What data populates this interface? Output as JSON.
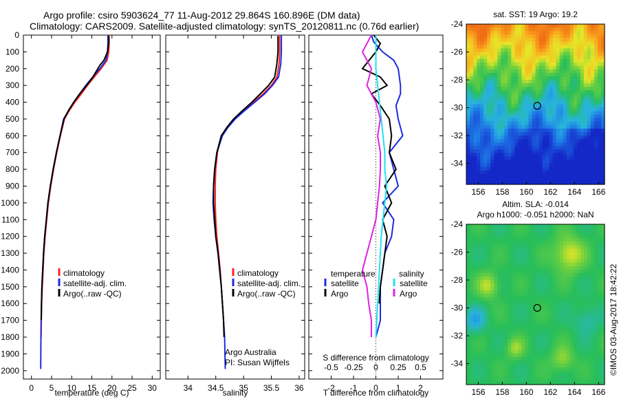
{
  "header": {
    "title_line1": "Argo profile: csiro 5903624_77 11-Aug-2012 29.864S 160.896E (DM data)",
    "title_line2": "Climatology: CARS2009. Satellite-adjusted climatology: synTS_20120811.nc (0.76d earlier)"
  },
  "stamp": "©IMOS 03-Aug-2017 18:42:22",
  "colors": {
    "red": "#ff2020",
    "blue": "#1a2ae0",
    "black": "#000000",
    "cyan": "#20e0f0",
    "magenta": "#e020e0"
  },
  "chart_data": [
    {
      "type": "line",
      "panel": "temperature",
      "xlabel": "temperature (deg C)",
      "ylabel": "",
      "xlim": [
        -2,
        32
      ],
      "ylim": [
        2050,
        0
      ],
      "xticks": [
        0,
        5,
        10,
        15,
        20,
        25,
        30
      ],
      "yticks": [
        0,
        100,
        200,
        300,
        400,
        500,
        600,
        700,
        800,
        900,
        1000,
        1100,
        1200,
        1300,
        1400,
        1500,
        1600,
        1700,
        1800,
        1900,
        2000
      ],
      "legend": [
        "climatology",
        "satellite-adj. clim.",
        "Argo(..raw -QC)"
      ],
      "legend_position": "lower-right",
      "series": [
        {
          "name": "climatology",
          "color": "red",
          "x": [
            19.3,
            19.3,
            19.2,
            18.8,
            17.3,
            15.6,
            13.9,
            12.4,
            10.8,
            9.4,
            8.2,
            7.2,
            6.3,
            5.5,
            4.8,
            4.2,
            3.8,
            3.4,
            3.1,
            2.9,
            2.7,
            2.55,
            2.45,
            2.4
          ],
          "y": [
            0,
            50,
            100,
            150,
            200,
            250,
            300,
            350,
            400,
            450,
            500,
            600,
            700,
            800,
            900,
            1000,
            1100,
            1200,
            1300,
            1400,
            1500,
            1600,
            1700,
            1800
          ]
        },
        {
          "name": "satellite-adj. clim.",
          "color": "blue",
          "x": [
            19.0,
            19.0,
            18.9,
            18.5,
            17.0,
            15.2,
            13.5,
            12.0,
            10.5,
            9.2,
            8.0,
            7.1,
            6.2,
            5.4,
            4.7,
            4.1,
            3.7,
            3.3,
            3.0,
            2.8,
            2.6,
            2.5,
            2.4,
            2.35,
            2.3
          ],
          "y": [
            0,
            50,
            100,
            150,
            200,
            250,
            300,
            350,
            400,
            450,
            500,
            600,
            700,
            800,
            900,
            1000,
            1100,
            1200,
            1300,
            1400,
            1500,
            1600,
            1700,
            1800,
            1990
          ]
        },
        {
          "name": "Argo(..raw -QC)",
          "color": "black",
          "x": [
            19.2,
            19.2,
            18.9,
            18.0,
            17.0,
            15.0,
            13.7,
            12.0,
            10.5,
            9.2,
            8.1,
            7.1,
            6.2,
            5.4,
            4.7,
            4.1,
            3.7,
            3.3,
            3.0,
            2.8,
            2.6,
            2.5,
            2.45
          ],
          "y": [
            5,
            50,
            100,
            150,
            180,
            260,
            300,
            350,
            400,
            450,
            500,
            600,
            700,
            800,
            900,
            1000,
            1100,
            1200,
            1300,
            1400,
            1500,
            1600,
            1700
          ]
        }
      ]
    },
    {
      "type": "line",
      "panel": "salinity",
      "xlabel": "salinity",
      "ylabel": "",
      "xlim": [
        33.6,
        36.1
      ],
      "ylim": [
        2050,
        0
      ],
      "xticks": [
        34,
        34.5,
        35,
        35.5,
        36
      ],
      "legend": [
        "climatology",
        "satellite-adj. clim.",
        "Argo(..raw -QC)"
      ],
      "legend_position": "lower-right",
      "annotation": [
        "Argo Australia",
        "PI: Susan Wijffels"
      ],
      "series": [
        {
          "name": "climatology",
          "color": "red",
          "x": [
            35.65,
            35.65,
            35.64,
            35.6,
            35.5,
            35.35,
            35.18,
            35.0,
            34.83,
            34.7,
            34.6,
            34.53,
            34.5,
            34.49,
            34.49,
            34.5,
            34.52,
            34.55,
            34.58,
            34.6,
            34.62,
            34.64,
            34.65
          ],
          "y": [
            0,
            100,
            170,
            250,
            300,
            350,
            400,
            450,
            500,
            550,
            600,
            700,
            800,
            900,
            1000,
            1100,
            1200,
            1300,
            1400,
            1500,
            1600,
            1700,
            1800
          ]
        },
        {
          "name": "satellite-adj. clim.",
          "color": "blue",
          "x": [
            35.68,
            35.68,
            35.67,
            35.63,
            35.52,
            35.38,
            35.2,
            35.02,
            34.85,
            34.72,
            34.62,
            34.52,
            34.48,
            34.46,
            34.45,
            34.47,
            34.5,
            34.54,
            34.57,
            34.6,
            34.62,
            34.64,
            34.66,
            34.67
          ],
          "y": [
            0,
            100,
            170,
            250,
            300,
            350,
            400,
            450,
            500,
            550,
            600,
            700,
            800,
            900,
            1000,
            1100,
            1200,
            1300,
            1400,
            1500,
            1600,
            1700,
            1800,
            1990
          ]
        },
        {
          "name": "Argo(..raw -QC)",
          "color": "black",
          "x": [
            35.62,
            35.62,
            35.6,
            35.56,
            35.45,
            35.3,
            35.15,
            34.98,
            34.82,
            34.7,
            34.6,
            34.52,
            34.48,
            34.46,
            34.46,
            34.48,
            34.5,
            34.54,
            34.57,
            34.6,
            34.62,
            34.64,
            34.65
          ],
          "y": [
            5,
            100,
            170,
            250,
            300,
            350,
            400,
            450,
            500,
            550,
            600,
            700,
            800,
            900,
            1000,
            1100,
            1200,
            1300,
            1400,
            1500,
            1600,
            1700,
            1800
          ]
        }
      ]
    },
    {
      "type": "line",
      "panel": "difference",
      "xlabel": "T difference from climatology",
      "xlabel_top": "S difference from climatology",
      "ylabel": "",
      "xlim": [
        -3,
        3
      ],
      "ylim": [
        2050,
        0
      ],
      "xticks": [
        -2,
        -1,
        0,
        1,
        2
      ],
      "xticks_s": [
        -0.5,
        -0.25,
        0,
        0.25,
        0.5
      ],
      "legend_temperature": [
        "temperature",
        "satellite",
        "Argo"
      ],
      "legend_salinity": [
        "salinity",
        "satellite",
        "Argo"
      ],
      "legend_position": "lower-center",
      "series": [
        {
          "name": "T satellite",
          "color": "blue",
          "x": [
            -0.2,
            -0.1,
            0.3,
            0.8,
            1.0,
            1.1,
            1.1,
            0.9,
            1.0,
            1.2,
            0.6,
            0.8,
            1.0,
            0.3,
            0.8,
            0.7,
            0.4,
            0.3,
            0.2,
            0.2,
            0.2,
            0.1,
            0.0
          ],
          "y": [
            0,
            40,
            100,
            150,
            200,
            300,
            350,
            420,
            500,
            600,
            700,
            800,
            900,
            1000,
            1100,
            1200,
            1300,
            1400,
            1500,
            1600,
            1700,
            1750,
            1800
          ]
        },
        {
          "name": "T Argo",
          "color": "black",
          "x": [
            -0.1,
            0.2,
            0.0,
            -0.6,
            0.2,
            0.5,
            -0.2,
            0.2,
            0.6,
            0.7,
            0.6,
            0.9,
            0.4,
            0.7,
            0.3,
            0.5,
            0.4,
            0.3,
            0.2,
            0.15
          ],
          "y": [
            0,
            50,
            100,
            200,
            250,
            300,
            350,
            420,
            500,
            600,
            700,
            800,
            900,
            1000,
            1100,
            1200,
            1300,
            1400,
            1500,
            1600
          ]
        },
        {
          "name": "S satellite",
          "color": "cyan",
          "x": [
            0.0,
            0.0,
            0.0,
            0.02,
            0.04,
            0.06,
            0.08,
            0.1,
            0.1,
            0.12,
            0.1,
            0.08,
            0.06,
            0.05,
            0.04,
            0.03,
            0.02,
            0.01,
            0.0
          ],
          "y": [
            0,
            100,
            200,
            300,
            400,
            500,
            600,
            700,
            800,
            900,
            1000,
            1100,
            1200,
            1300,
            1400,
            1500,
            1600,
            1700,
            1800
          ]
        },
        {
          "name": "S Argo",
          "color": "magenta",
          "x": [
            -0.05,
            -0.15,
            -0.05,
            -0.1,
            0.0,
            0.05,
            0.02,
            0.05,
            0.05,
            0.04,
            0.02,
            0.0,
            -0.05,
            -0.1,
            -0.15,
            -0.1,
            -0.08,
            -0.05,
            -0.05
          ],
          "y": [
            0,
            100,
            200,
            300,
            400,
            500,
            600,
            700,
            800,
            900,
            1000,
            1100,
            1200,
            1300,
            1400,
            1500,
            1600,
            1700,
            1800
          ]
        }
      ]
    },
    {
      "type": "heatmap",
      "panel": "sst-map",
      "title": "sat. SST: 19 Argo: 19.2",
      "xticks": [
        156,
        158,
        160,
        162,
        164,
        166
      ],
      "yticks": [
        -24,
        -26,
        -28,
        -30,
        -32,
        -34
      ],
      "xlim": [
        155,
        166.5
      ],
      "ylim": [
        -35.5,
        -24
      ],
      "marker": {
        "lon": 160.9,
        "lat": -29.86
      }
    },
    {
      "type": "heatmap",
      "panel": "sla-map",
      "title_line1": "Altim. SLA: -0.014",
      "title_line2": "Argo h1000: -0.051 h2000: NaN",
      "xticks": [
        156,
        158,
        160,
        162,
        164,
        166
      ],
      "yticks": [
        -24,
        -26,
        -28,
        -30,
        -32,
        -34
      ],
      "xlim": [
        155,
        166.5
      ],
      "ylim": [
        -35.5,
        -24
      ],
      "marker": {
        "lon": 160.9,
        "lat": -30.0
      }
    }
  ]
}
